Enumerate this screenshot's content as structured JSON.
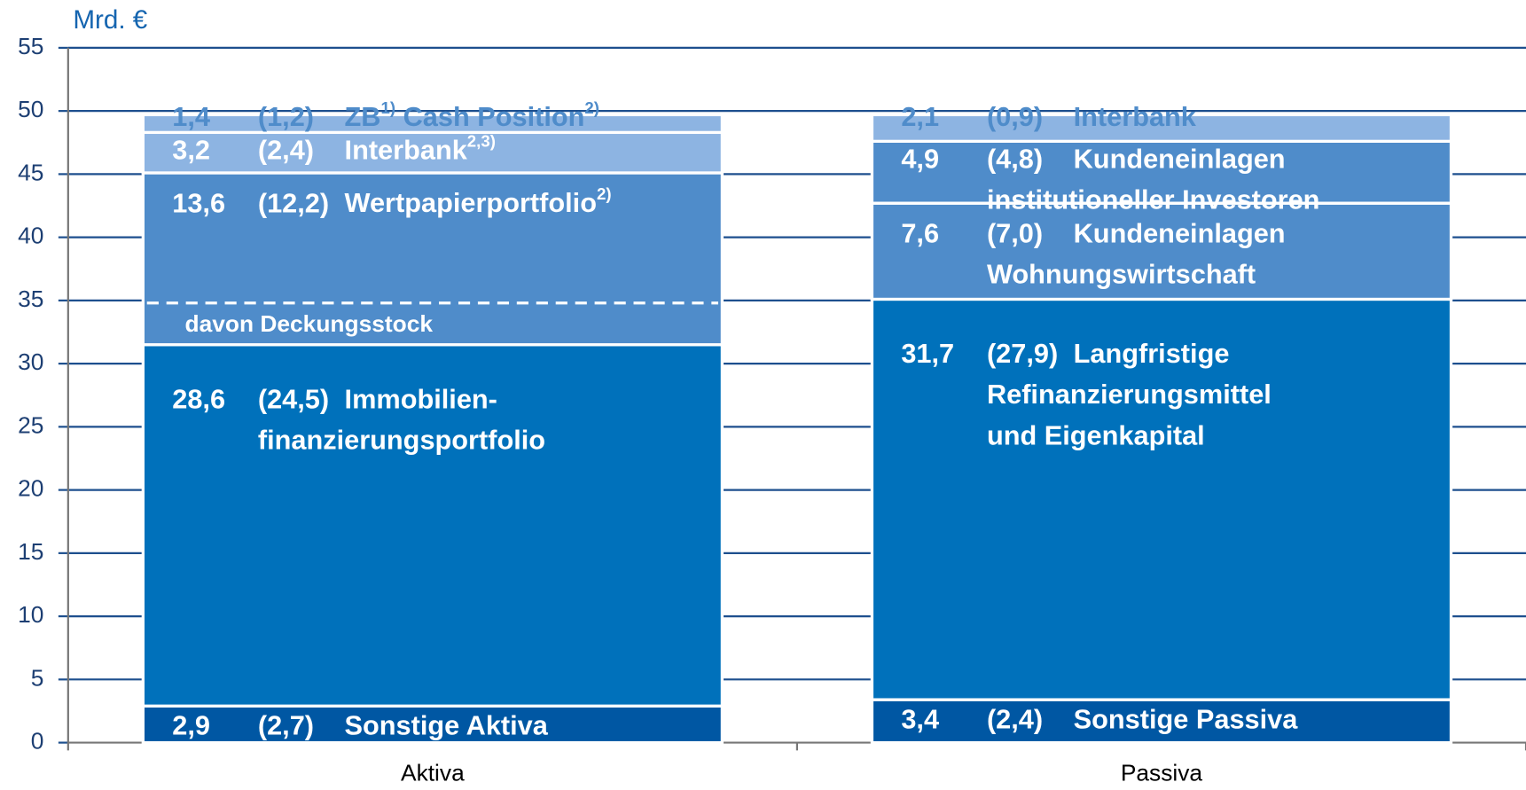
{
  "chart_data": {
    "type": "stacked-bar",
    "y_label": "Mrd. €",
    "categories": [
      "Aktiva",
      "Passiva"
    ],
    "ylim": [
      0,
      55
    ],
    "yticks": [
      0,
      5,
      10,
      15,
      20,
      25,
      30,
      35,
      40,
      45,
      50,
      55
    ],
    "grid": true,
    "series": [
      {
        "colors": [
          "#0057a3",
          "#0057a3"
        ],
        "text_colors": [
          "#ffffff",
          "#ffffff"
        ],
        "values": [
          2.9,
          3.4
        ],
        "value_labels": [
          "2,9",
          "3,4"
        ],
        "prior": [
          "(2,7)",
          "(2,4)"
        ],
        "labels": [
          [
            [
              "Sonstige Aktiva"
            ]
          ],
          [
            [
              "Sonstige Passiva"
            ]
          ]
        ]
      },
      {
        "colors": [
          "#0071bb",
          "#0071bb"
        ],
        "text_colors": [
          "#ffffff",
          "#ffffff"
        ],
        "values": [
          28.6,
          31.7
        ],
        "value_labels": [
          "28,6",
          "31,7"
        ],
        "prior": [
          "(24,5)",
          "(27,9)"
        ],
        "labels": [
          [
            [
              "Immobilien-"
            ],
            [
              "finanzierungsportfolio"
            ]
          ],
          [
            [
              "Langfristige"
            ],
            [
              "Refinanzierungsmittel"
            ],
            [
              "und Eigenkapital"
            ]
          ]
        ]
      },
      {
        "colors": [
          "#4f8cca",
          "#4f8cca"
        ],
        "text_colors": [
          "#ffffff",
          "#ffffff"
        ],
        "values": [
          13.6,
          7.6
        ],
        "value_labels": [
          "13,6",
          "7,6"
        ],
        "prior": [
          "(12,2)",
          "(7,0)"
        ],
        "labels": [
          [
            [
              "Wertpapierportfolio",
              {
                "sup": "2)"
              }
            ]
          ],
          [
            [
              "Kundeneinlagen"
            ],
            [
              "Wohnungswirtschaft"
            ]
          ]
        ],
        "deckungsstock": {
          "label": "davon Deckungsstock",
          "value": 3.3
        }
      },
      {
        "colors": [
          "#8db4e2",
          "#4f8cca"
        ],
        "text_colors": [
          "#ffffff",
          "#ffffff"
        ],
        "values": [
          3.2,
          4.9
        ],
        "value_labels": [
          "3,2",
          "4,9"
        ],
        "prior": [
          "(2,4)",
          "(4,8)"
        ],
        "labels": [
          [
            [
              "Interbank",
              {
                "sup": "2,3)"
              }
            ]
          ],
          [
            [
              "Kundeneinlagen"
            ],
            [
              "institutioneller Investoren"
            ]
          ]
        ]
      },
      {
        "colors": [
          "#8db4e2",
          "#8db4e2"
        ],
        "text_colors": [
          "#4f8cca",
          "#4f8cca"
        ],
        "values": [
          1.4,
          2.1
        ],
        "value_labels": [
          "1,4",
          "2,1"
        ],
        "prior": [
          "(1,2)",
          "(0,9)"
        ],
        "labels": [
          [
            [
              "ZB",
              {
                "sup": "1)"
              },
              " Cash Position",
              {
                "sup": "2)"
              }
            ]
          ],
          [
            [
              "Interbank"
            ]
          ]
        ]
      }
    ]
  }
}
